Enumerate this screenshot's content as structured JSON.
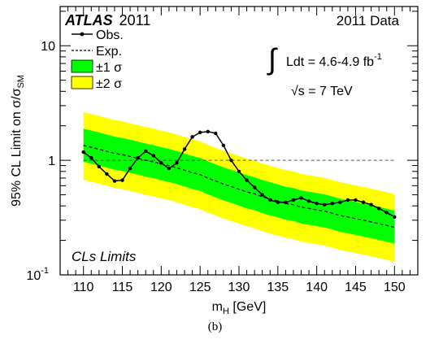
{
  "chart_data": {
    "type": "line",
    "x_scale": "linear",
    "y_scale": "log",
    "xlim": [
      107,
      153
    ],
    "ylim": [
      0.1,
      22
    ],
    "x_ticks": [
      110,
      115,
      120,
      125,
      130,
      135,
      140,
      145,
      150
    ],
    "y_ticks": [
      {
        "value": 0.1,
        "base": "10",
        "exp": "-1"
      },
      {
        "value": 1,
        "base": "1",
        "exp": ""
      },
      {
        "value": 10,
        "base": "10",
        "exp": ""
      }
    ],
    "xlabel": {
      "main": "m",
      "sub": "H",
      "unit": " [GeV]"
    },
    "ylabel": {
      "main": "95% CL Limit on σ/σ",
      "sub": "SM"
    },
    "reference_line": 1,
    "x": [
      110,
      111,
      112,
      113,
      114,
      115,
      116,
      117,
      118,
      119,
      120,
      121,
      122,
      123,
      124,
      125,
      126,
      127,
      128,
      129,
      130,
      131,
      132,
      133,
      134,
      135,
      136,
      137,
      138,
      139,
      140,
      141,
      142,
      143,
      144,
      145,
      146,
      147,
      148,
      149,
      150
    ],
    "series": [
      {
        "name": "Obs.",
        "style": "solid-dots",
        "values": [
          1.18,
          1.05,
          0.88,
          0.76,
          0.66,
          0.67,
          0.85,
          1.05,
          1.2,
          1.1,
          0.95,
          0.85,
          0.95,
          1.25,
          1.6,
          1.75,
          1.78,
          1.72,
          1.35,
          1.0,
          0.8,
          0.67,
          0.58,
          0.5,
          0.45,
          0.43,
          0.43,
          0.45,
          0.47,
          0.44,
          0.42,
          0.41,
          0.42,
          0.43,
          0.45,
          0.45,
          0.43,
          0.41,
          0.38,
          0.35,
          0.32
        ]
      },
      {
        "name": "Exp.",
        "style": "dashed",
        "values": [
          1.35,
          1.3,
          1.25,
          1.2,
          1.15,
          1.12,
          1.08,
          1.04,
          1.0,
          0.97,
          0.93,
          0.9,
          0.86,
          0.82,
          0.78,
          0.75,
          0.7,
          0.66,
          0.62,
          0.59,
          0.56,
          0.53,
          0.51,
          0.48,
          0.46,
          0.44,
          0.42,
          0.41,
          0.39,
          0.38,
          0.37,
          0.36,
          0.345,
          0.33,
          0.32,
          0.31,
          0.3,
          0.29,
          0.28,
          0.27,
          0.26
        ]
      }
    ],
    "bands": [
      {
        "name": "±2 σ",
        "color": "#ffff00",
        "mult_low": 0.5,
        "mult_high": 1.95
      },
      {
        "name": "±1 σ",
        "color": "#00ff00",
        "mult_low": 0.72,
        "mult_high": 1.4
      }
    ],
    "annotations": {
      "atlas": "ATLAS",
      "year": "2011",
      "data_label": "2011 Data",
      "lumi_integral": "∫",
      "lumi_text": "Ldt = 4.6-4.9 fb",
      "lumi_exp": "-1",
      "energy_sqrt": "√s",
      "energy_text": " = 7 TeV",
      "method": "CLs Limits"
    },
    "legend": {
      "placement": "top-left",
      "entries": [
        {
          "label": "Obs.",
          "kind": "line-dots"
        },
        {
          "label": "Exp.",
          "kind": "dashed"
        },
        {
          "label": "±1 σ",
          "kind": "box",
          "color": "#00ff00"
        },
        {
          "label": "±2 σ",
          "kind": "box",
          "color": "#ffff00"
        }
      ]
    },
    "caption": "(b)"
  }
}
